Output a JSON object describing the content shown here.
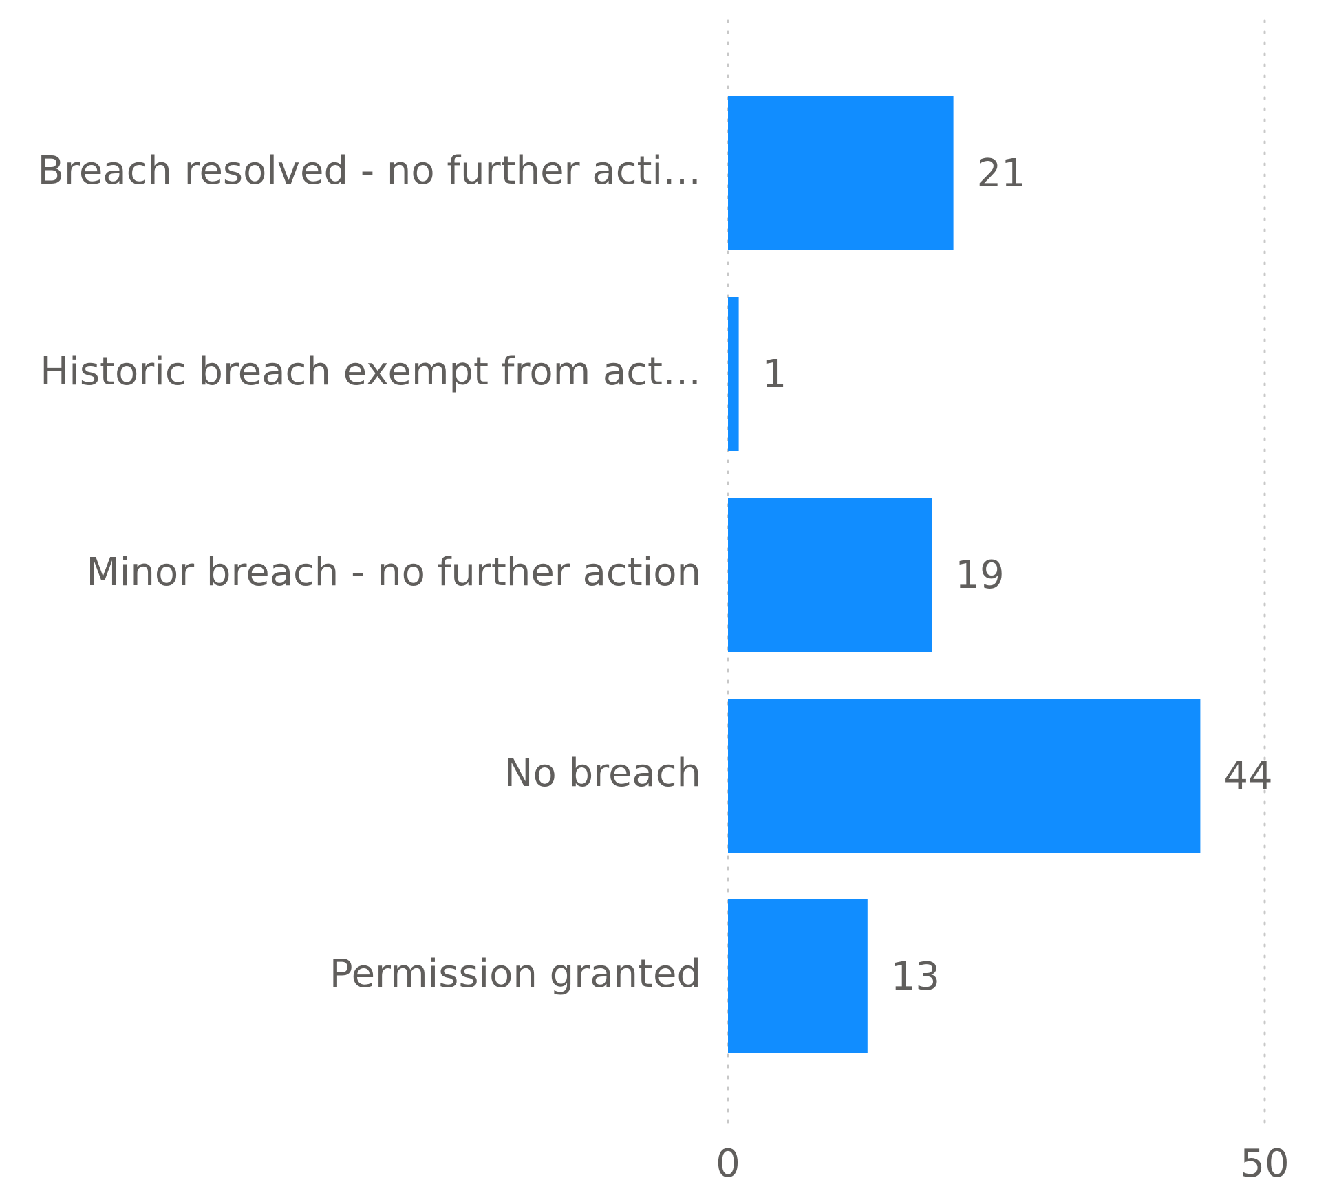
{
  "chart_data": {
    "type": "bar",
    "orientation": "horizontal",
    "categories": [
      "Breach resolved - no further acti…",
      "Historic breach exempt from act…",
      "Minor breach - no further action",
      "No breach",
      "Permission granted"
    ],
    "values": [
      21,
      1,
      19,
      44,
      13
    ],
    "color": "#118dff",
    "xlim": [
      0,
      50
    ],
    "xticks": [
      0,
      50
    ],
    "grid": true
  }
}
